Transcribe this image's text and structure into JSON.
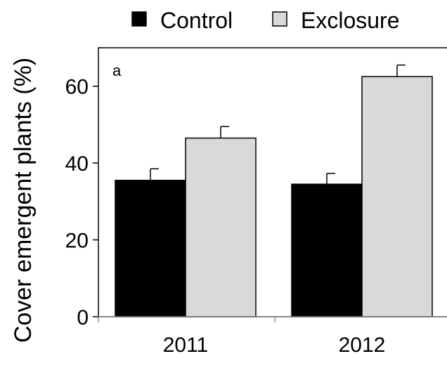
{
  "chart_data": {
    "type": "bar",
    "panel_label": "a",
    "ylabel": "Cover emergent plants (%)",
    "categories": [
      "2011",
      "2012"
    ],
    "series": [
      {
        "name": "Control",
        "values": [
          35.5,
          34.5
        ],
        "errors": [
          3.0,
          2.8
        ],
        "color": "#000000"
      },
      {
        "name": "Exclosure",
        "values": [
          46.5,
          62.5
        ],
        "errors": [
          3.0,
          3.0
        ],
        "color": "#d9d9d9"
      }
    ],
    "ylim": [
      0,
      70
    ],
    "yticks": [
      "0",
      "20",
      "40",
      "60"
    ],
    "grid": false,
    "legend": "top"
  }
}
